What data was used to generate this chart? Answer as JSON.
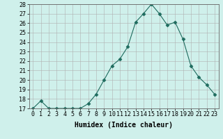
{
  "x": [
    0,
    1,
    2,
    3,
    4,
    5,
    6,
    7,
    8,
    9,
    10,
    11,
    12,
    13,
    14,
    15,
    16,
    17,
    18,
    19,
    20,
    21,
    22,
    23
  ],
  "y": [
    17,
    17.8,
    17,
    17,
    17,
    17,
    17,
    17.5,
    18.5,
    20,
    21.5,
    22.2,
    23.5,
    26.1,
    27.0,
    28,
    27,
    25.8,
    26.1,
    24.3,
    21.5,
    20.3,
    19.5,
    18.5
  ],
  "xlabel": "Humidex (Indice chaleur)",
  "xlim": [
    -0.5,
    23.5
  ],
  "ylim": [
    17,
    28
  ],
  "yticks": [
    17,
    18,
    19,
    20,
    21,
    22,
    23,
    24,
    25,
    26,
    27,
    28
  ],
  "xtick_labels": [
    "0",
    "1",
    "2",
    "3",
    "4",
    "5",
    "6",
    "7",
    "8",
    "9",
    "10",
    "11",
    "12",
    "13",
    "14",
    "15",
    "16",
    "17",
    "18",
    "19",
    "20",
    "21",
    "22",
    "23"
  ],
  "line_color": "#1e6b5e",
  "marker": "D",
  "marker_size": 2.5,
  "bg_color": "#cff0eb",
  "grid_color_major": "#b0b0b0",
  "grid_color_minor": "#d8d8d8",
  "fig_bg": "#cff0eb",
  "tick_fontsize": 6,
  "xlabel_fontsize": 7
}
